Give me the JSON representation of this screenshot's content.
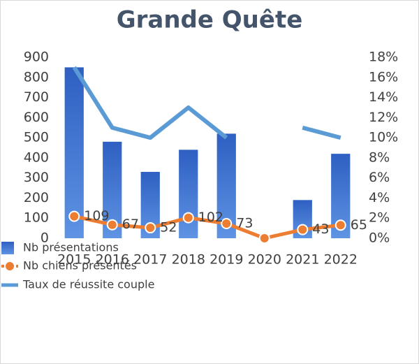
{
  "chart_data": {
    "type": "bar-line",
    "title": "Grande Quête",
    "categories": [
      "2015",
      "2016",
      "2017",
      "2018",
      "2019",
      "2020",
      "2021",
      "2022"
    ],
    "series": [
      {
        "name": "Nb présentations",
        "type": "bar",
        "color": "#3a6fd0",
        "values": [
          850,
          480,
          330,
          440,
          520,
          0,
          190,
          420
        ]
      },
      {
        "name": "Nb chiens présentés",
        "type": "line",
        "color": "#ed7d31",
        "markers": true,
        "data_labels": true,
        "values": [
          109,
          67,
          52,
          102,
          73,
          0,
          43,
          65
        ]
      },
      {
        "name": "Taux de réussite couple",
        "type": "line",
        "color": "#5b9bd5",
        "axis": "y2",
        "values": [
          17,
          11,
          10,
          13,
          10,
          null,
          11,
          10
        ]
      }
    ],
    "ylim": [
      0,
      900
    ],
    "yticks": [
      0,
      100,
      200,
      300,
      400,
      500,
      600,
      700,
      800,
      900
    ],
    "y2lim": [
      0,
      18
    ],
    "y2ticks": [
      {
        "value": 0,
        "label": "0%"
      },
      {
        "value": 2,
        "label": "2%"
      },
      {
        "value": 4,
        "label": "4%"
      },
      {
        "value": 6,
        "label": "6%"
      },
      {
        "value": 8,
        "label": "8%"
      },
      {
        "value": 10,
        "label": "10%"
      },
      {
        "value": 12,
        "label": "12%"
      },
      {
        "value": 14,
        "label": "14%"
      },
      {
        "value": 16,
        "label": "16%"
      },
      {
        "value": 18,
        "label": "18%"
      }
    ],
    "grid": false,
    "legend": "bottom-left"
  }
}
